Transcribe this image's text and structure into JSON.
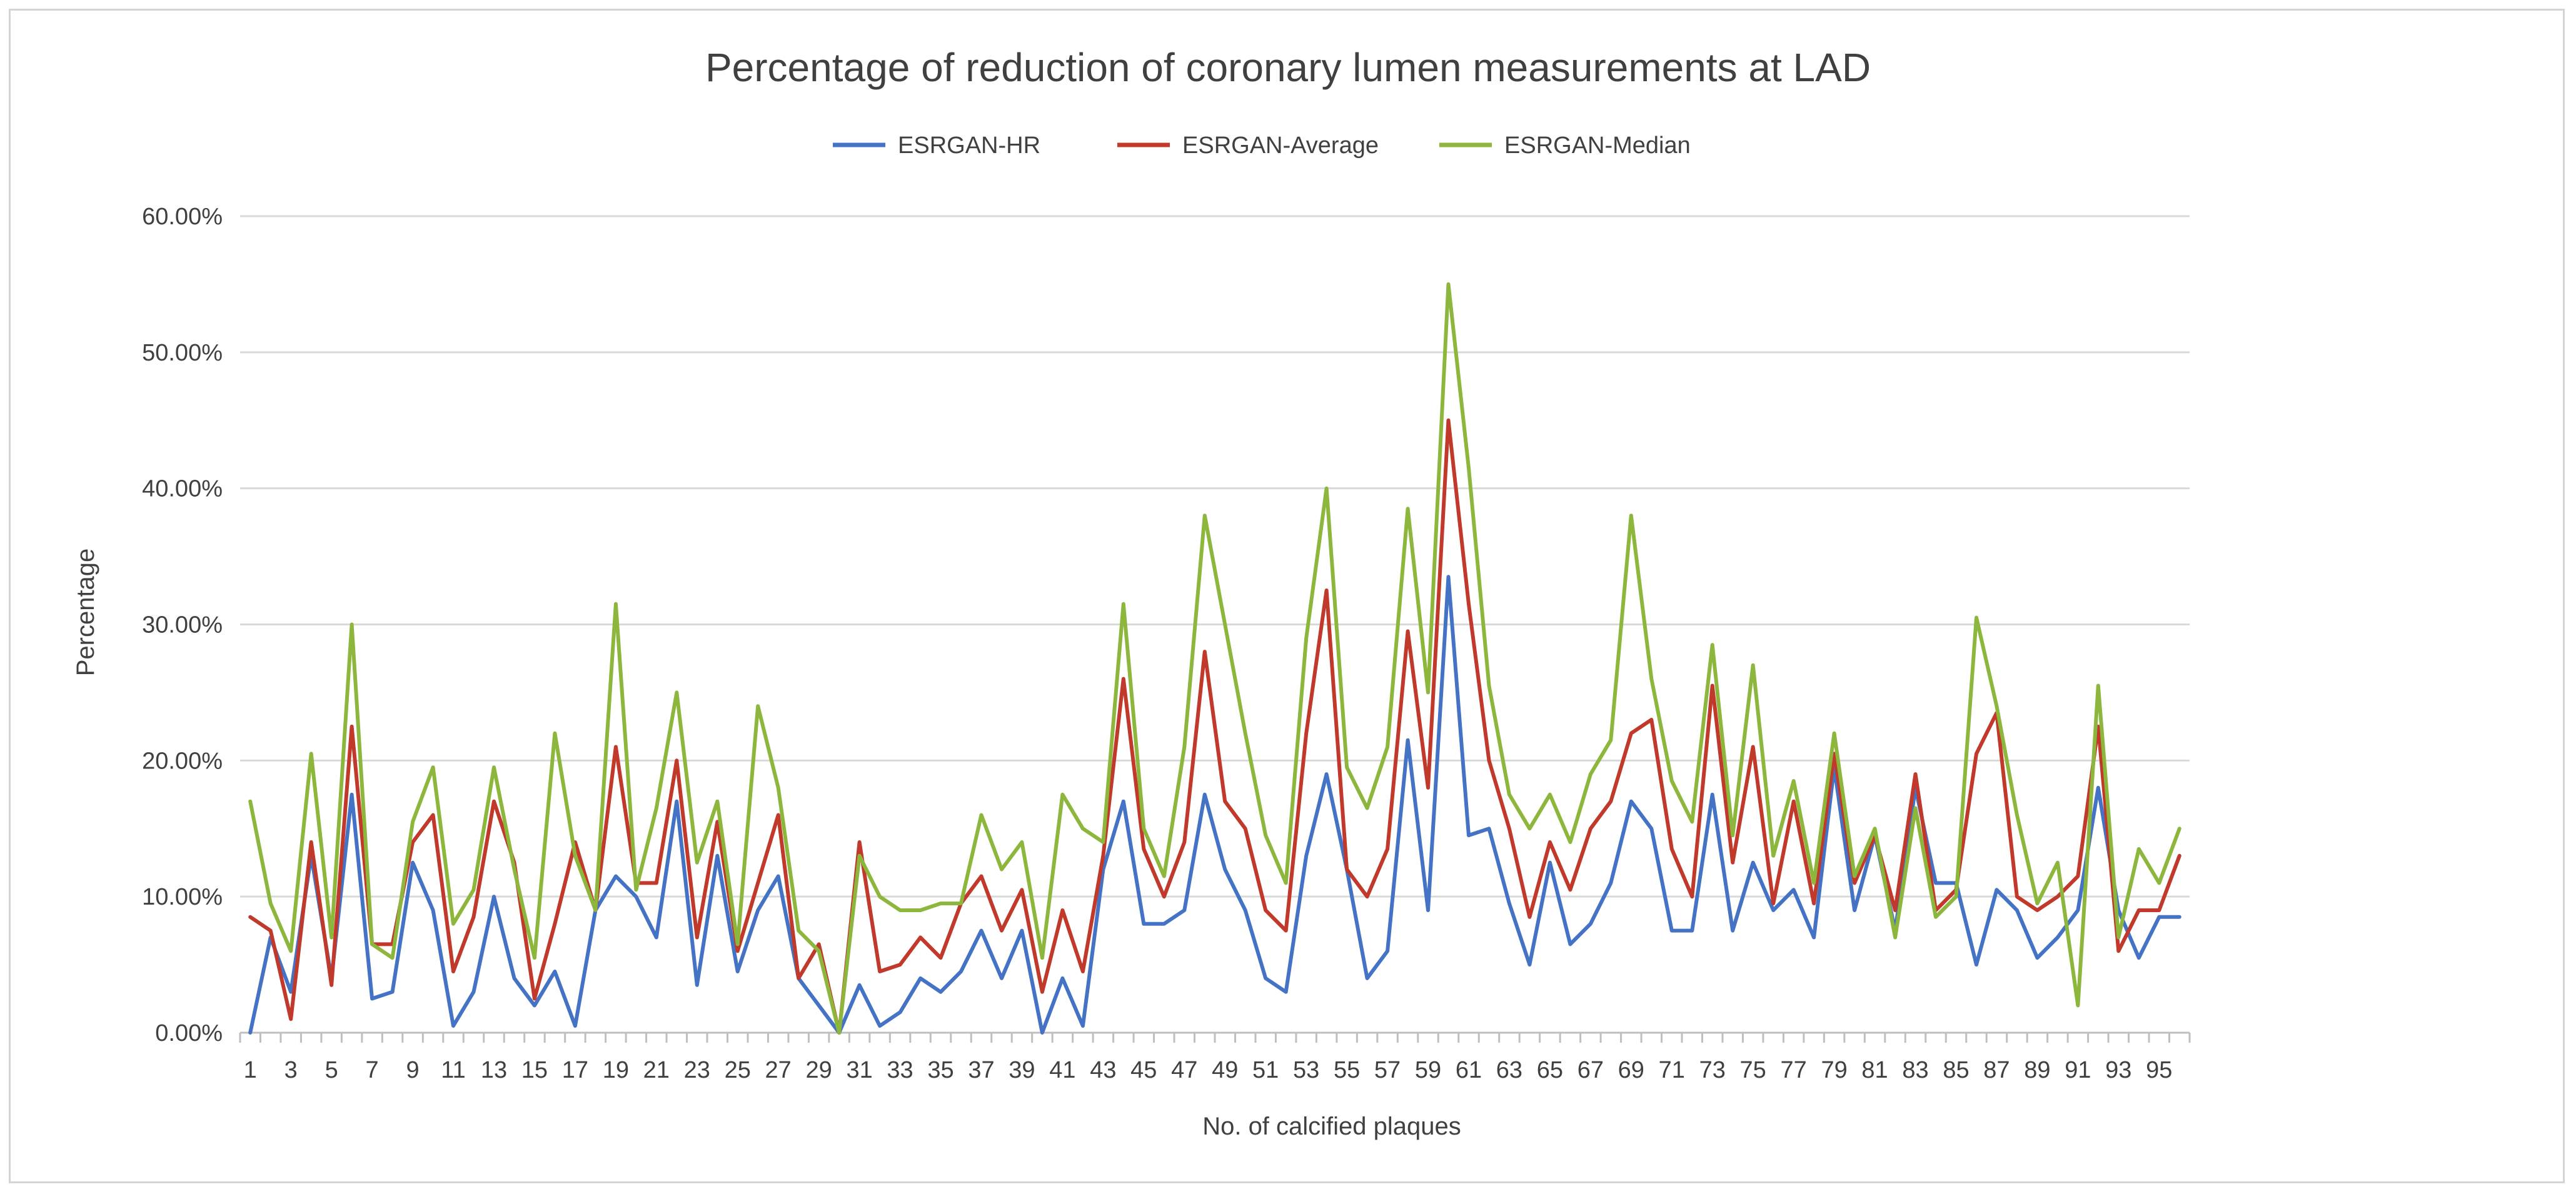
{
  "chart_data": {
    "type": "line",
    "title": "Percentage of reduction of coronary lumen measurements at LAD",
    "xlabel": "No. of calcified plaques",
    "ylabel": "Percentage",
    "ylim": [
      0,
      60
    ],
    "yticks": [
      "0.00%",
      "10.00%",
      "20.00%",
      "30.00%",
      "40.00%",
      "50.00%",
      "60.00%"
    ],
    "grid": true,
    "legend_position": "top-center",
    "x": [
      1,
      2,
      3,
      4,
      5,
      6,
      7,
      8,
      9,
      10,
      11,
      12,
      13,
      14,
      15,
      16,
      17,
      18,
      19,
      20,
      21,
      22,
      23,
      24,
      25,
      26,
      27,
      28,
      29,
      30,
      31,
      32,
      33,
      34,
      35,
      36,
      37,
      38,
      39,
      40,
      41,
      42,
      43,
      44,
      45,
      46,
      47,
      48,
      49,
      50,
      51,
      52,
      53,
      54,
      55,
      56,
      57,
      58,
      59,
      60,
      61,
      62,
      63,
      64,
      65,
      66,
      67,
      68,
      69,
      70,
      71,
      72,
      73,
      74,
      75,
      76,
      77,
      78,
      79,
      80,
      81,
      82,
      83,
      84,
      85,
      86,
      87,
      88,
      89,
      90,
      91,
      92,
      93,
      94,
      95,
      96
    ],
    "xtick_labels": [
      "1",
      "3",
      "5",
      "7",
      "9",
      "11",
      "13",
      "15",
      "17",
      "19",
      "21",
      "23",
      "25",
      "27",
      "29",
      "31",
      "33",
      "35",
      "37",
      "39",
      "41",
      "43",
      "45",
      "47",
      "49",
      "51",
      "53",
      "55",
      "57",
      "59",
      "61",
      "63",
      "65",
      "67",
      "69",
      "71",
      "73",
      "75",
      "77",
      "79",
      "81",
      "83",
      "85",
      "87",
      "89",
      "91",
      "93",
      "95"
    ],
    "series": [
      {
        "name": "ESRGAN-HR",
        "color": "#4472C4",
        "values": [
          0,
          7,
          3,
          13,
          4,
          17.5,
          2.5,
          3,
          12.5,
          9,
          0.5,
          3,
          10,
          4,
          2,
          4.5,
          0.5,
          9,
          11.5,
          10,
          7,
          17,
          3.5,
          13,
          4.5,
          9,
          11.5,
          4,
          2,
          0,
          3.5,
          0.5,
          1.5,
          4,
          3,
          4.5,
          7.5,
          4,
          7.5,
          0,
          4,
          0.5,
          12,
          17,
          8,
          8,
          9,
          17.5,
          12,
          9,
          4,
          3,
          13,
          19,
          12,
          4,
          6,
          21.5,
          9,
          33.5,
          14.5,
          15,
          9.5,
          5,
          12.5,
          6.5,
          8,
          11,
          17,
          15,
          7.5,
          7.5,
          17.5,
          7.5,
          12.5,
          9,
          10.5,
          7,
          19.5,
          9,
          14.5,
          7.5,
          18,
          11,
          11,
          5,
          10.5,
          9,
          5.5,
          7,
          9,
          18,
          9,
          5.5,
          8.5,
          8.5
        ]
      },
      {
        "name": "ESRGAN-Average",
        "color": "#C0392B",
        "values": [
          8.5,
          7.5,
          1,
          14,
          3.5,
          22.5,
          6.5,
          6.5,
          14,
          16,
          4.5,
          8.5,
          17,
          12.5,
          2.5,
          8,
          14,
          9,
          21,
          11,
          11,
          20,
          7,
          15.5,
          6,
          11,
          16,
          4,
          6.5,
          0,
          14,
          4.5,
          5,
          7,
          5.5,
          9.5,
          11.5,
          7.5,
          10.5,
          3,
          9,
          4.5,
          13,
          26,
          13.5,
          10,
          14,
          28,
          17,
          15,
          9,
          7.5,
          22,
          32.5,
          12,
          10,
          13.5,
          29.5,
          18,
          45,
          31.5,
          20,
          15,
          8.5,
          14,
          10.5,
          15,
          17,
          22,
          23,
          13.5,
          10,
          25.5,
          12.5,
          21,
          9.5,
          17,
          9.5,
          20.5,
          11,
          14.5,
          9,
          19,
          9,
          10.5,
          20.5,
          23.5,
          10,
          9,
          10,
          11.5,
          22.5,
          6,
          9,
          9,
          13
        ]
      },
      {
        "name": "ESRGAN-Median",
        "color": "#8DB63C",
        "values": [
          17,
          9.5,
          6,
          20.5,
          7,
          30,
          6.5,
          5.5,
          15.5,
          19.5,
          8,
          10.5,
          19.5,
          12,
          5.5,
          22,
          13,
          9,
          31.5,
          10.5,
          16.5,
          25,
          12.5,
          17,
          6.5,
          24,
          18,
          7.5,
          6,
          0,
          13,
          10,
          9,
          9,
          9.5,
          9.5,
          16,
          12,
          14,
          5.5,
          17.5,
          15,
          14,
          31.5,
          15,
          11.5,
          21,
          38,
          30,
          22,
          14.5,
          11,
          29,
          40,
          19.5,
          16.5,
          21,
          38.5,
          25,
          55,
          41.5,
          25.5,
          17.5,
          15,
          17.5,
          14,
          19,
          21.5,
          38,
          26,
          18.5,
          15.5,
          28.5,
          14.5,
          27,
          13,
          18.5,
          11,
          22,
          11.5,
          15,
          7,
          16.5,
          8.5,
          10,
          30.5,
          24,
          16,
          9.5,
          12.5,
          2,
          25.5,
          7,
          13.5,
          11,
          15
        ]
      }
    ]
  }
}
